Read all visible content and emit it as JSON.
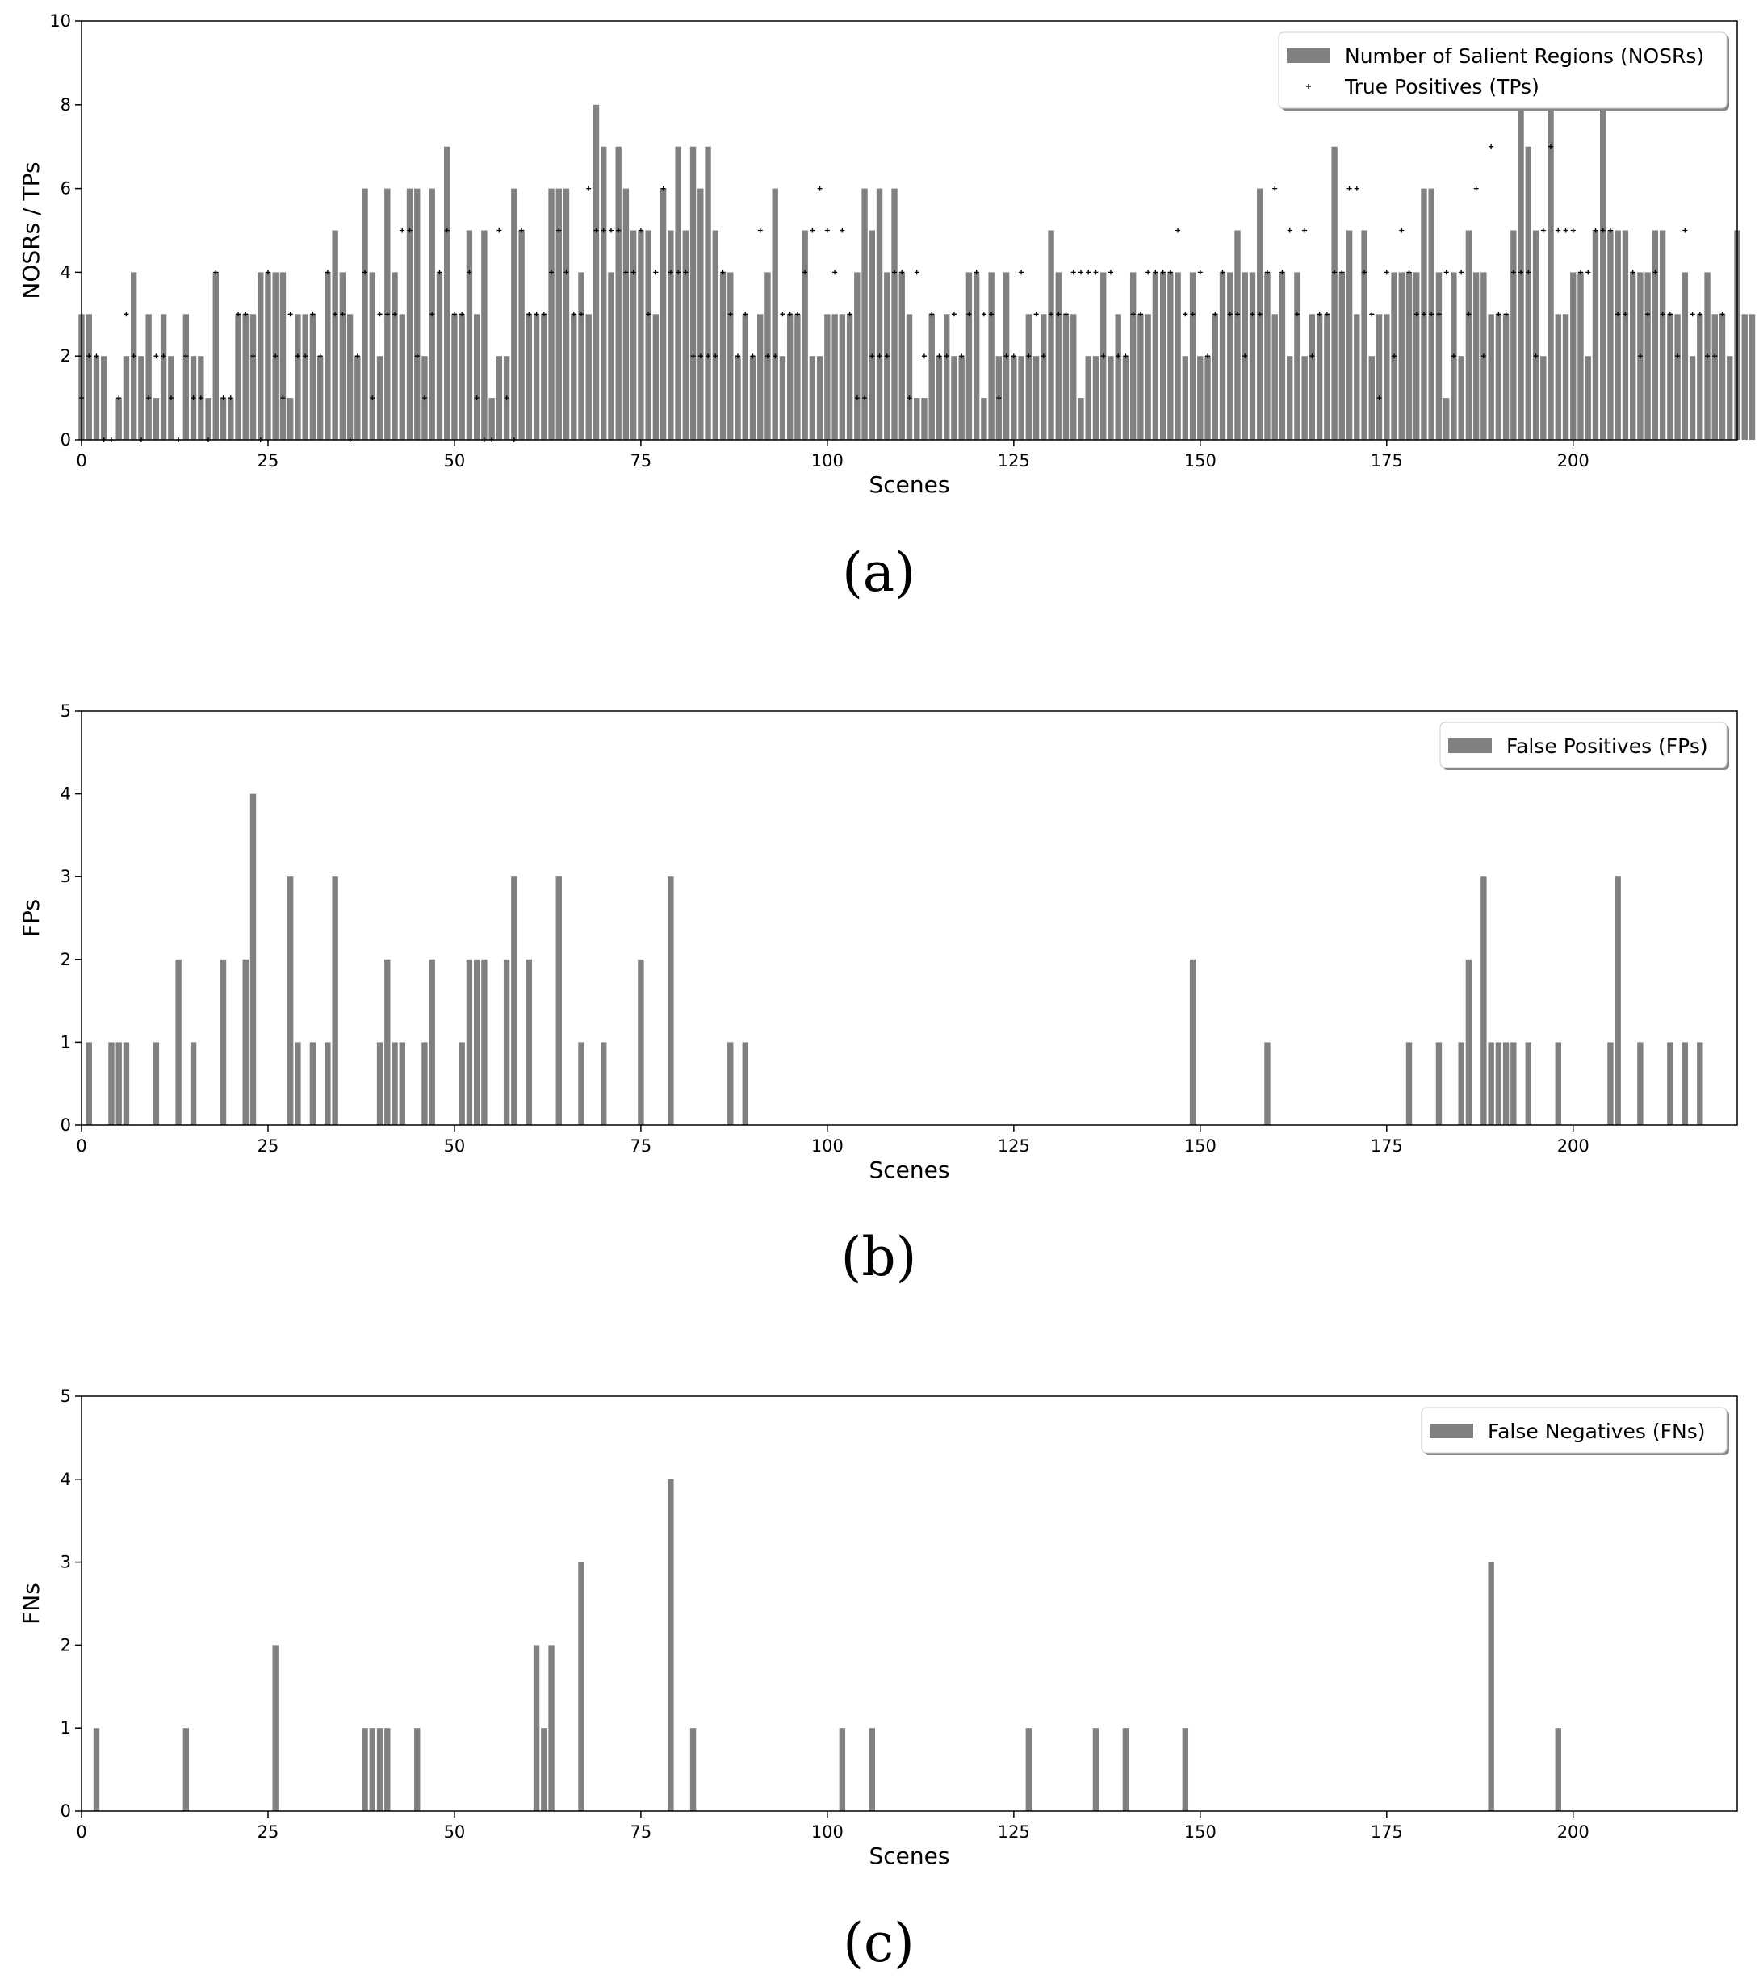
{
  "chart_data": [
    {
      "type": "bar",
      "panel_label": "(a)",
      "xlabel": "Scenes",
      "ylabel": "NOSRs / TPs",
      "xlim": [
        0,
        222
      ],
      "ylim": [
        0,
        10
      ],
      "xticks": [
        0,
        25,
        50,
        75,
        100,
        125,
        150,
        175,
        200
      ],
      "yticks": [
        0,
        2,
        4,
        6,
        8,
        10
      ],
      "grid": false,
      "legend_position": "top-right",
      "color": "#808080",
      "marker_color": "#000000",
      "series": [
        {
          "name": "Number of Salient Regions (NOSRs)",
          "kind": "bar",
          "values": [
            3,
            3,
            2,
            2,
            0,
            1,
            2,
            4,
            2,
            3,
            1,
            3,
            2,
            0,
            3,
            2,
            2,
            1,
            4,
            1,
            1,
            3,
            3,
            3,
            4,
            4,
            4,
            4,
            1,
            3,
            3,
            3,
            2,
            4,
            5,
            4,
            3,
            2,
            6,
            4,
            2,
            6,
            4,
            3,
            6,
            6,
            2,
            6,
            4,
            7,
            3,
            3,
            5,
            3,
            5,
            1,
            2,
            2,
            6,
            5,
            3,
            3,
            3,
            6,
            6,
            6,
            3,
            4,
            3,
            8,
            7,
            4,
            7,
            6,
            5,
            5,
            5,
            3,
            6,
            5,
            7,
            5,
            7,
            6,
            7,
            5,
            4,
            4,
            2,
            3,
            2,
            3,
            4,
            6,
            2,
            3,
            3,
            5,
            2,
            2,
            3,
            3,
            3,
            3,
            4,
            6,
            5,
            6,
            4,
            6,
            4,
            3,
            1,
            1,
            3,
            2,
            3,
            2,
            2,
            4,
            4,
            1,
            4,
            2,
            4,
            2,
            2,
            3,
            2,
            3,
            5,
            4,
            3,
            3,
            1,
            2,
            2,
            4,
            2,
            3,
            2,
            4,
            3,
            3,
            4,
            4,
            4,
            4,
            2,
            4,
            2,
            2,
            3,
            4,
            4,
            5,
            4,
            4,
            6,
            4,
            3,
            4,
            2,
            4,
            2,
            3,
            3,
            3,
            7,
            4,
            5,
            3,
            5,
            2,
            3,
            3,
            4,
            4,
            4,
            4,
            6,
            6,
            4,
            1,
            4,
            2,
            5,
            4,
            4,
            3,
            3,
            3,
            5,
            8,
            7,
            5,
            2,
            8,
            3,
            3,
            4,
            4,
            2,
            5,
            8,
            5,
            5,
            5,
            4,
            4,
            4,
            5,
            5,
            3,
            3,
            4,
            2,
            3,
            4,
            3,
            3,
            2,
            5,
            3,
            3
          ]
        },
        {
          "name": "True Positives (TPs)",
          "kind": "marker",
          "values": [
            1,
            2,
            2,
            0,
            0,
            1,
            3,
            2,
            0,
            1,
            2,
            2,
            1,
            0,
            2,
            1,
            1,
            0,
            4,
            1,
            1,
            3,
            3,
            2,
            0,
            4,
            2,
            1,
            3,
            2,
            2,
            3,
            2,
            4,
            3,
            3,
            0,
            2,
            4,
            1,
            3,
            3,
            3,
            5,
            5,
            2,
            1,
            3,
            4,
            5,
            3,
            3,
            4,
            1,
            0,
            0,
            5,
            1,
            0,
            5,
            3,
            3,
            3,
            4,
            5,
            4,
            3,
            3,
            6,
            5,
            5,
            5,
            5,
            4,
            4,
            5,
            3,
            4,
            6,
            4,
            4,
            4,
            2,
            2,
            2,
            2,
            4,
            3,
            2,
            3,
            2,
            5,
            2,
            2,
            3,
            3,
            3,
            4,
            5,
            6,
            5,
            4,
            5,
            3,
            1,
            1,
            2,
            2,
            2,
            4,
            4,
            1,
            4,
            2,
            3,
            2,
            2,
            3,
            2,
            3,
            4,
            3,
            3,
            1,
            2,
            2,
            4,
            2,
            3,
            2,
            3,
            3,
            3,
            4,
            4,
            4,
            4,
            2,
            4,
            2,
            2,
            3,
            3,
            4,
            4,
            4,
            4,
            5,
            3,
            3,
            4,
            2,
            3,
            4,
            3,
            3,
            2,
            3,
            3,
            4,
            6,
            4,
            5,
            3,
            5,
            2,
            3,
            3,
            4,
            4,
            6,
            6,
            4,
            3,
            1,
            4,
            2,
            5,
            4,
            3,
            3,
            3,
            3,
            4,
            2,
            4,
            3,
            6,
            2,
            7,
            3,
            3,
            4,
            4,
            4,
            2,
            5,
            7,
            5,
            5,
            5,
            4,
            4,
            5,
            5,
            5,
            3,
            3,
            4,
            2,
            3,
            4,
            3,
            3,
            2,
            5,
            3,
            3,
            2,
            2,
            3
          ]
        }
      ]
    },
    {
      "type": "bar",
      "panel_label": "(b)",
      "xlabel": "Scenes",
      "ylabel": "FPs",
      "xlim": [
        0,
        222
      ],
      "ylim": [
        0,
        5
      ],
      "xticks": [
        0,
        25,
        50,
        75,
        100,
        125,
        150,
        175,
        200
      ],
      "yticks": [
        0,
        1,
        2,
        3,
        4,
        5
      ],
      "grid": false,
      "legend_position": "top-right",
      "color": "#808080",
      "series": [
        {
          "name": "False Positives (FPs)",
          "kind": "bar",
          "values": [
            0,
            1,
            0,
            0,
            1,
            1,
            1,
            0,
            0,
            0,
            1,
            0,
            0,
            2,
            0,
            1,
            0,
            0,
            0,
            2,
            0,
            0,
            2,
            4,
            0,
            0,
            0,
            0,
            3,
            1,
            0,
            1,
            0,
            1,
            3,
            0,
            0,
            0,
            0,
            0,
            1,
            2,
            1,
            1,
            0,
            0,
            1,
            2,
            0,
            0,
            0,
            1,
            2,
            2,
            2,
            0,
            0,
            2,
            3,
            0,
            2,
            0,
            0,
            0,
            3,
            0,
            0,
            1,
            0,
            0,
            1,
            0,
            0,
            0,
            0,
            2,
            0,
            0,
            0,
            3,
            0,
            0,
            0,
            0,
            0,
            0,
            0,
            1,
            0,
            1,
            0,
            0,
            0,
            0,
            0,
            0,
            0,
            0,
            0,
            0,
            0,
            0,
            0,
            0,
            0,
            0,
            0,
            0,
            0,
            0,
            0,
            0,
            0,
            0,
            0,
            0,
            0,
            0,
            0,
            0,
            0,
            0,
            0,
            0,
            0,
            0,
            0,
            0,
            0,
            0,
            0,
            0,
            0,
            0,
            0,
            0,
            0,
            0,
            0,
            0,
            0,
            0,
            0,
            0,
            0,
            0,
            0,
            0,
            0,
            2,
            0,
            0,
            0,
            0,
            0,
            0,
            0,
            0,
            0,
            1,
            0,
            0,
            0,
            0,
            0,
            0,
            0,
            0,
            0,
            0,
            0,
            0,
            0,
            0,
            0,
            0,
            0,
            0,
            1,
            0,
            0,
            0,
            1,
            0,
            0,
            1,
            2,
            0,
            3,
            1,
            1,
            1,
            1,
            0,
            1,
            0,
            0,
            0,
            1,
            0,
            0,
            0,
            0,
            0,
            0,
            1,
            3,
            0,
            0,
            1,
            0,
            0,
            0,
            1,
            0,
            1,
            0,
            1,
            0,
            0,
            0,
            0
          ]
        }
      ]
    },
    {
      "type": "bar",
      "panel_label": "(c)",
      "xlabel": "Scenes",
      "ylabel": "FNs",
      "xlim": [
        0,
        222
      ],
      "ylim": [
        0,
        5
      ],
      "xticks": [
        0,
        25,
        50,
        75,
        100,
        125,
        150,
        175,
        200
      ],
      "yticks": [
        0,
        1,
        2,
        3,
        4,
        5
      ],
      "grid": false,
      "legend_position": "top-right",
      "color": "#808080",
      "series": [
        {
          "name": "False Negatives (FNs)",
          "kind": "bar",
          "values": [
            0,
            0,
            1,
            0,
            0,
            0,
            0,
            0,
            0,
            0,
            0,
            0,
            0,
            0,
            1,
            0,
            0,
            0,
            0,
            0,
            0,
            0,
            0,
            0,
            0,
            0,
            2,
            0,
            0,
            0,
            0,
            0,
            0,
            0,
            0,
            0,
            0,
            0,
            1,
            1,
            1,
            1,
            0,
            0,
            0,
            1,
            0,
            0,
            0,
            0,
            0,
            0,
            0,
            0,
            0,
            0,
            0,
            0,
            0,
            0,
            0,
            2,
            1,
            2,
            0,
            0,
            0,
            3,
            0,
            0,
            0,
            0,
            0,
            0,
            0,
            0,
            0,
            0,
            0,
            4,
            0,
            0,
            1,
            0,
            0,
            0,
            0,
            0,
            0,
            0,
            0,
            0,
            0,
            0,
            0,
            0,
            0,
            0,
            0,
            0,
            0,
            0,
            1,
            0,
            0,
            0,
            1,
            0,
            0,
            0,
            0,
            0,
            0,
            0,
            0,
            0,
            0,
            0,
            0,
            0,
            0,
            0,
            0,
            0,
            0,
            0,
            0,
            1,
            0,
            0,
            0,
            0,
            0,
            0,
            0,
            0,
            1,
            0,
            0,
            0,
            1,
            0,
            0,
            0,
            0,
            0,
            0,
            0,
            1,
            0,
            0,
            0,
            0,
            0,
            0,
            0,
            0,
            0,
            0,
            0,
            0,
            0,
            0,
            0,
            0,
            0,
            0,
            0,
            0,
            0,
            0,
            0,
            0,
            0,
            0,
            0,
            0,
            0,
            0,
            0,
            0,
            0,
            0,
            0,
            0,
            0,
            0,
            0,
            0,
            3,
            0,
            0,
            0,
            0,
            0,
            0,
            0,
            0,
            1,
            0,
            0,
            0,
            0,
            0,
            0,
            0,
            0,
            0,
            0,
            0,
            0,
            0,
            0,
            0,
            0,
            0,
            0,
            0,
            0,
            0,
            0,
            0,
            0,
            0
          ]
        }
      ]
    }
  ]
}
